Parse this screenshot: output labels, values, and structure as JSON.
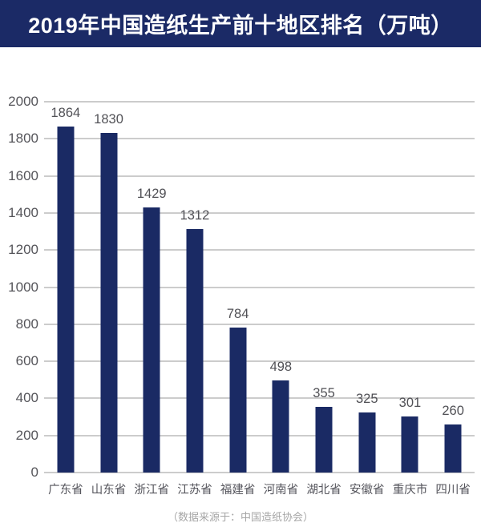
{
  "header": {
    "title": "2019年中国造纸生产前十地区排名（万吨）"
  },
  "chart_data": {
    "type": "bar",
    "title": "2019年中国造纸生产前十地区排名（万吨）",
    "categories": [
      "广东省",
      "山东省",
      "浙江省",
      "江苏省",
      "福建省",
      "河南省",
      "湖北省",
      "安徽省",
      "重庆市",
      "四川省"
    ],
    "values": [
      1864,
      1830,
      1429,
      1312,
      784,
      498,
      355,
      325,
      301,
      260
    ],
    "xlabel": "",
    "ylabel": "",
    "ylim": [
      0,
      2000
    ],
    "ytick_step": 200,
    "grid": true,
    "legend": "none",
    "value_labels": true
  },
  "footer": {
    "source_note": "（数据来源于：中国造纸协会）"
  },
  "colors": {
    "banner_bg": "#1b2a66",
    "banner_text": "#ffffff",
    "bar": "#1a2a64",
    "grid": "#cccccc",
    "axis_text": "#55555a",
    "value_text": "#515156",
    "x_label_text": "#55555c",
    "footer_text": "#a6a6a6",
    "background": "#ffffff"
  }
}
